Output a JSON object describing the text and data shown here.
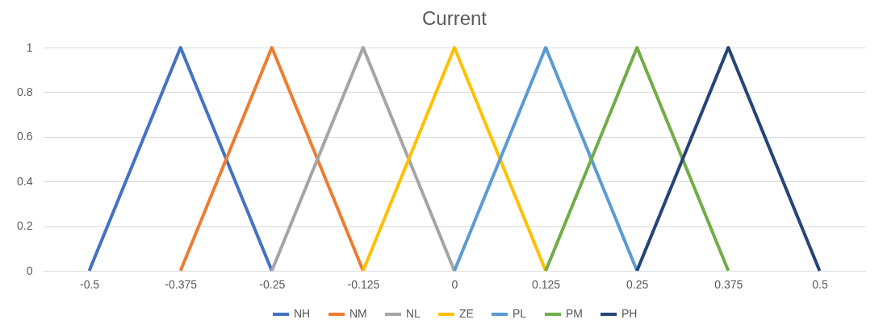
{
  "chart_data": {
    "type": "line",
    "title": "Current",
    "categories": [
      "-0.5",
      "-0.375",
      "-0.25",
      "-0.125",
      "0",
      "0.125",
      "0.25",
      "0.375",
      "0.5"
    ],
    "series": [
      {
        "name": "NH",
        "color": "#4472c4",
        "values": [
          0,
          1,
          0,
          null,
          null,
          null,
          null,
          null,
          null
        ]
      },
      {
        "name": "NM",
        "color": "#ed7d31",
        "values": [
          null,
          0,
          1,
          0,
          null,
          null,
          null,
          null,
          null
        ]
      },
      {
        "name": "NL",
        "color": "#a5a5a5",
        "values": [
          null,
          null,
          0,
          1,
          0,
          null,
          null,
          null,
          null
        ]
      },
      {
        "name": "ZE",
        "color": "#ffc000",
        "values": [
          null,
          null,
          null,
          0,
          1,
          0,
          null,
          null,
          null
        ]
      },
      {
        "name": "PL",
        "color": "#5b9bd5",
        "values": [
          null,
          null,
          null,
          null,
          0,
          1,
          0,
          null,
          null
        ]
      },
      {
        "name": "PM",
        "color": "#70ad47",
        "values": [
          null,
          null,
          null,
          null,
          null,
          0,
          1,
          0,
          null
        ]
      },
      {
        "name": "PH",
        "color": "#264478",
        "values": [
          null,
          null,
          null,
          null,
          null,
          null,
          0,
          1,
          0
        ]
      }
    ],
    "ylim": [
      0,
      1
    ],
    "yticks": [
      0,
      0.2,
      0.4,
      0.6,
      0.8,
      1
    ],
    "grid": "y",
    "legend": "bottom",
    "marker": "none",
    "line_style": "solid"
  }
}
